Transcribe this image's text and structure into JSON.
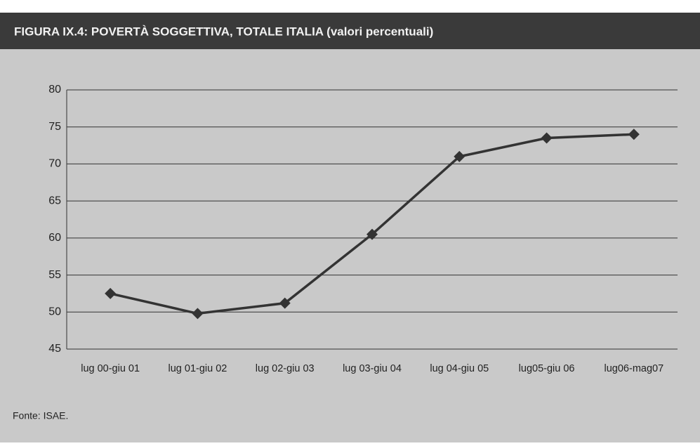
{
  "chart_data": {
    "type": "line",
    "title": "FIGURA IX.4: POVERTÀ SOGGETTIVA, TOTALE ITALIA (valori percentuali)",
    "categories": [
      "lug 00-giu 01",
      "lug 01-giu 02",
      "lug 02-giu 03",
      "lug 03-giu 04",
      "lug 04-giu 05",
      "lug05-giu 06",
      "lug06-mag07"
    ],
    "values": [
      52.5,
      49.8,
      51.2,
      60.5,
      71,
      73.5,
      74
    ],
    "color": "#333333",
    "ylim": [
      45,
      80
    ],
    "yticks": [
      45,
      50,
      55,
      60,
      65,
      70,
      75,
      80
    ],
    "grid": true,
    "source": "Fonte: ISAE."
  }
}
